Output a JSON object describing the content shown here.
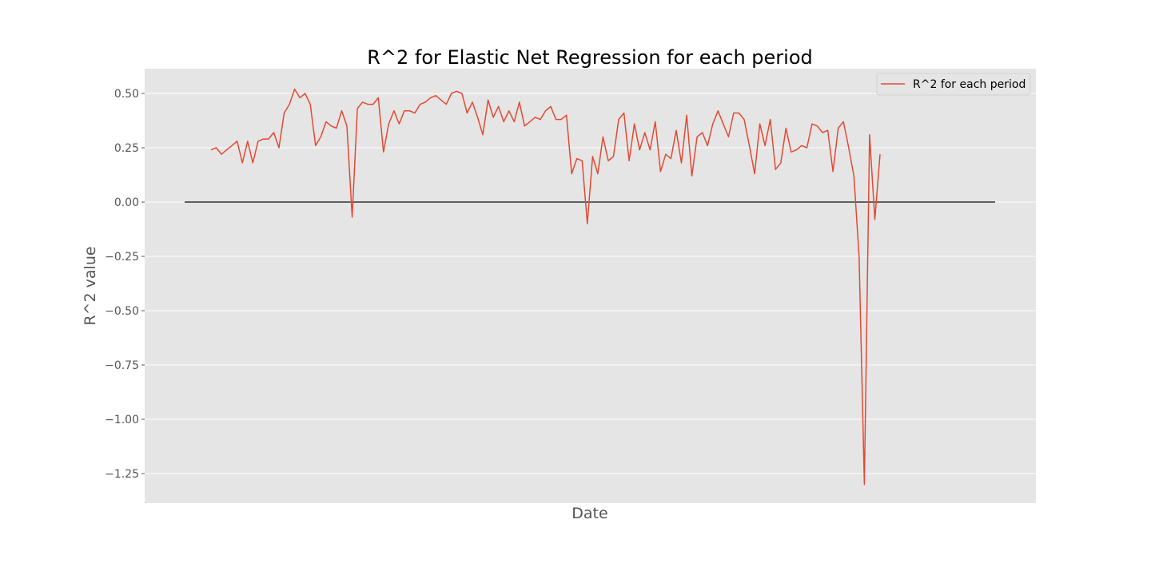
{
  "chart_data": {
    "type": "line",
    "title": "R^2 for Elastic Net Regression for each period",
    "xlabel": "Date",
    "ylabel": "R^2 value",
    "ylim": [
      -1.38,
      0.61
    ],
    "yticks": [
      0.5,
      0.25,
      0.0,
      -0.25,
      -0.5,
      -0.75,
      -1.0,
      -1.25
    ],
    "ytick_labels": [
      "0.50",
      "0.25",
      "0.00",
      "−0.25",
      "−0.50",
      "−0.75",
      "−1.00",
      "−1.25"
    ],
    "xtick_labels": [],
    "grid": true,
    "legend_position": "top-right",
    "reference_line": {
      "y": 0.0,
      "color": "#333333"
    },
    "series": [
      {
        "name": "R^2 for each period",
        "color": "#E24A33",
        "values": [
          0.24,
          0.25,
          0.22,
          0.24,
          0.26,
          0.28,
          0.18,
          0.28,
          0.18,
          0.28,
          0.29,
          0.29,
          0.32,
          0.25,
          0.41,
          0.45,
          0.52,
          0.48,
          0.5,
          0.45,
          0.26,
          0.3,
          0.37,
          0.35,
          0.34,
          0.42,
          0.35,
          -0.07,
          0.43,
          0.46,
          0.45,
          0.45,
          0.48,
          0.23,
          0.36,
          0.42,
          0.36,
          0.42,
          0.42,
          0.41,
          0.45,
          0.46,
          0.48,
          0.49,
          0.47,
          0.45,
          0.5,
          0.51,
          0.5,
          0.41,
          0.46,
          0.39,
          0.31,
          0.47,
          0.39,
          0.44,
          0.37,
          0.42,
          0.37,
          0.46,
          0.35,
          0.37,
          0.39,
          0.38,
          0.42,
          0.44,
          0.38,
          0.38,
          0.4,
          0.13,
          0.2,
          0.19,
          -0.1,
          0.21,
          0.13,
          0.3,
          0.19,
          0.21,
          0.38,
          0.41,
          0.19,
          0.36,
          0.24,
          0.32,
          0.24,
          0.37,
          0.14,
          0.22,
          0.2,
          0.33,
          0.18,
          0.4,
          0.12,
          0.3,
          0.32,
          0.26,
          0.36,
          0.42,
          0.36,
          0.3,
          0.41,
          0.41,
          0.38,
          0.26,
          0.13,
          0.36,
          0.26,
          0.38,
          0.15,
          0.18,
          0.34,
          0.23,
          0.24,
          0.26,
          0.25,
          0.36,
          0.35,
          0.32,
          0.33,
          0.14,
          0.34,
          0.37,
          0.25,
          0.12,
          -0.25,
          -1.3,
          0.31,
          -0.08,
          0.22
        ]
      }
    ]
  }
}
